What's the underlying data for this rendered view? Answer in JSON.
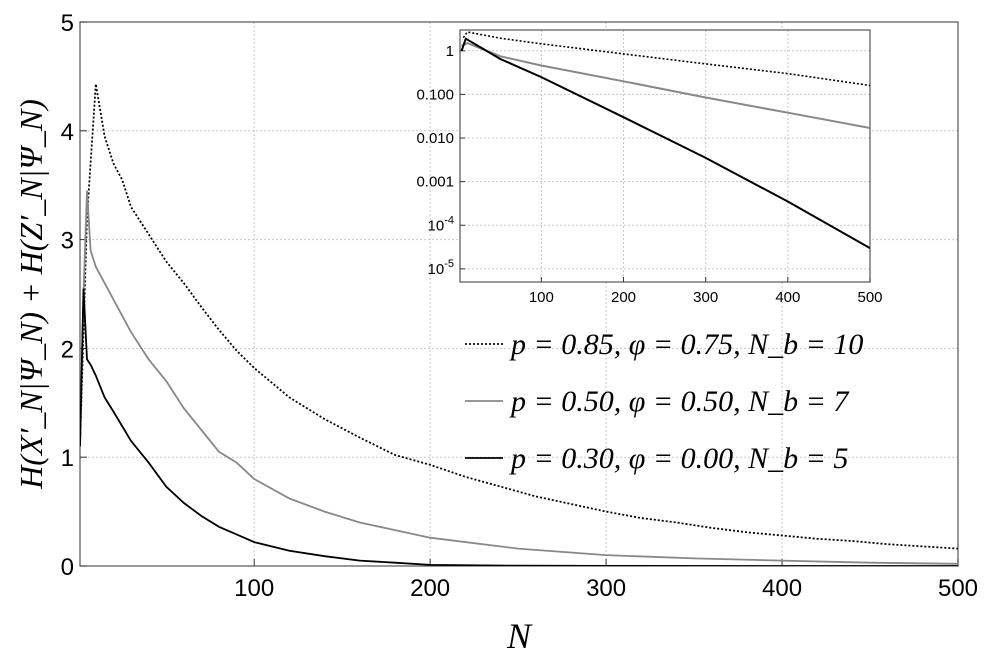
{
  "chart_data": [
    {
      "type": "line",
      "xlabel": "N",
      "ylabel": "H(X′_N|Ψ_N) + H(Z′_N|Ψ_N)",
      "xlim": [
        1,
        500
      ],
      "ylim": [
        0,
        5
      ],
      "x_ticks": [
        "100",
        "200",
        "300",
        "400",
        "500"
      ],
      "y_ticks": [
        "0",
        "1",
        "2",
        "3",
        "4",
        "5"
      ],
      "grid": true,
      "legend_position": "center-right",
      "series": [
        {
          "name": "p = 0.85, φ = 0.75, N_b = 10",
          "style": "dotted",
          "color": "#000000",
          "x": [
            1,
            5,
            10,
            15,
            20,
            25,
            30,
            40,
            50,
            60,
            70,
            80,
            90,
            100,
            120,
            140,
            160,
            180,
            200,
            220,
            240,
            260,
            280,
            300,
            320,
            340,
            360,
            380,
            400,
            420,
            440,
            460,
            480,
            500
          ],
          "y": [
            1.1,
            3.2,
            4.43,
            3.95,
            3.7,
            3.55,
            3.3,
            3.05,
            2.8,
            2.6,
            2.38,
            2.17,
            1.98,
            1.82,
            1.55,
            1.35,
            1.18,
            1.02,
            0.93,
            0.82,
            0.73,
            0.64,
            0.57,
            0.5,
            0.44,
            0.4,
            0.35,
            0.31,
            0.28,
            0.25,
            0.23,
            0.2,
            0.18,
            0.16
          ]
        },
        {
          "name": "p = 0.50, φ = 0.50, N_b = 7",
          "style": "solid",
          "color": "#888888",
          "x": [
            1,
            3,
            5,
            7,
            10,
            15,
            20,
            30,
            40,
            50,
            60,
            70,
            80,
            90,
            100,
            120,
            140,
            160,
            180,
            200,
            250,
            300,
            350,
            400,
            450,
            500
          ],
          "y": [
            1.1,
            2.5,
            3.45,
            2.9,
            2.75,
            2.6,
            2.45,
            2.15,
            1.9,
            1.7,
            1.45,
            1.25,
            1.05,
            0.95,
            0.8,
            0.62,
            0.5,
            0.4,
            0.33,
            0.26,
            0.16,
            0.1,
            0.07,
            0.05,
            0.03,
            0.02
          ]
        },
        {
          "name": "p = 0.30, φ = 0.00, N_b = 5",
          "style": "solid",
          "color": "#000000",
          "x": [
            1,
            3,
            5,
            7,
            10,
            15,
            20,
            30,
            40,
            50,
            60,
            70,
            80,
            90,
            100,
            120,
            140,
            160,
            180,
            200,
            250,
            300,
            400,
            500
          ],
          "y": [
            1.1,
            2.55,
            1.9,
            1.85,
            1.75,
            1.55,
            1.42,
            1.15,
            0.95,
            0.73,
            0.58,
            0.46,
            0.36,
            0.29,
            0.22,
            0.14,
            0.09,
            0.05,
            0.03,
            0.01,
            0.003,
            0.001,
            0.0,
            0.0
          ]
        }
      ]
    },
    {
      "type": "line",
      "yscale": "log",
      "xlim": [
        1,
        500
      ],
      "ylim": [
        5e-06,
        3
      ],
      "x_ticks": [
        "100",
        "200",
        "300",
        "400",
        "500"
      ],
      "y_ticks": [
        {
          "label": "1",
          "value": 1
        },
        {
          "label": "0.100",
          "value": 0.1
        },
        {
          "label": "0.010",
          "value": 0.01
        },
        {
          "label": "0.001",
          "value": 0.001
        },
        {
          "label": "10",
          "sup": "-4",
          "value": 0.0001
        },
        {
          "label": "10",
          "sup": "-5",
          "value": 1e-05
        }
      ],
      "grid": true,
      "series": [
        {
          "style": "dotted",
          "color": "#000000",
          "x": [
            5,
            10,
            50,
            100,
            200,
            300,
            400,
            500
          ],
          "y": [
            2.0,
            2.7,
            1.95,
            1.45,
            0.85,
            0.5,
            0.3,
            0.16
          ]
        },
        {
          "style": "solid",
          "color": "#888888",
          "x": [
            3,
            10,
            50,
            100,
            200,
            300,
            400,
            500
          ],
          "y": [
            1.3,
            1.5,
            0.75,
            0.46,
            0.2,
            0.085,
            0.038,
            0.017
          ]
        },
        {
          "style": "solid",
          "color": "#000000",
          "x": [
            3,
            8,
            50,
            100,
            200,
            300,
            400,
            500
          ],
          "y": [
            1.0,
            1.9,
            0.65,
            0.25,
            0.03,
            0.0035,
            0.00035,
            3e-05
          ]
        }
      ]
    }
  ]
}
